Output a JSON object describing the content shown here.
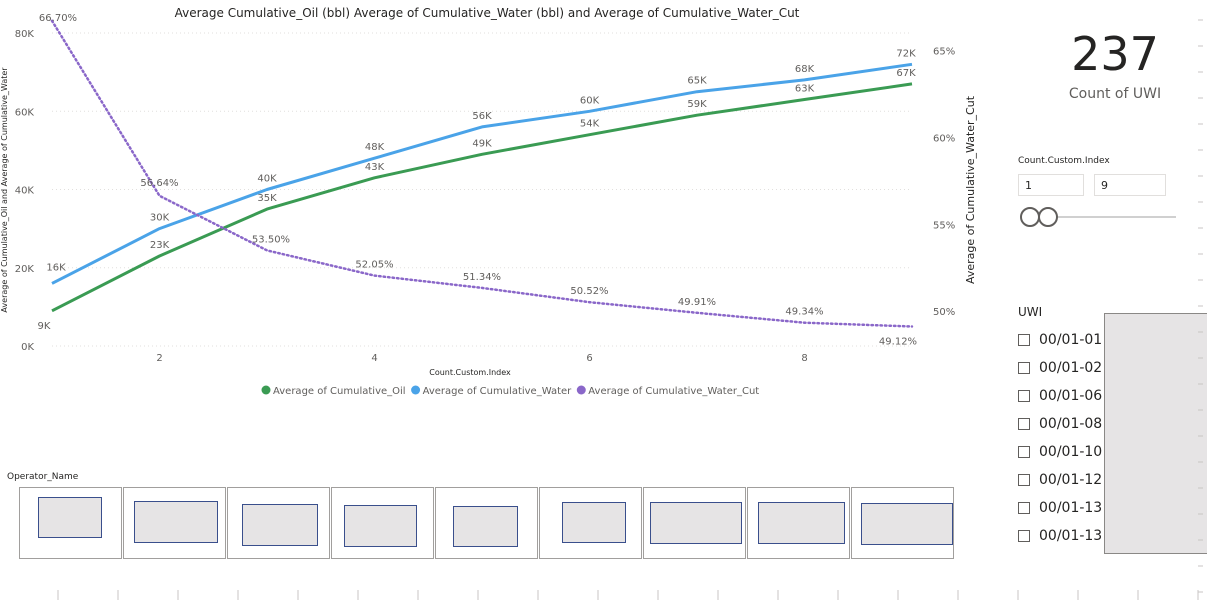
{
  "chart_data": {
    "type": "line",
    "title": "Average Cumulative_Oil (bbl) Average of Cumulative_Water (bbl) and Average of Cumulative_Water_Cut",
    "xlabel": "Count.Custom.Index",
    "ylabel_left": "Average of Cumulative_Oil and Average of Cumulative_Water",
    "ylabel_right": "Average of Cumulative_Water_Cut",
    "x": [
      1,
      2,
      3,
      4,
      5,
      6,
      7,
      8,
      9
    ],
    "x_ticks": [
      "2",
      "4",
      "6",
      "8"
    ],
    "x_tick_values": [
      2,
      4,
      6,
      8
    ],
    "xlim": [
      1,
      9
    ],
    "ylim_left": [
      0,
      80000
    ],
    "y_ticks_left": [
      "0K",
      "20K",
      "40K",
      "60K",
      "80K"
    ],
    "y_tick_values_left": [
      0,
      20000,
      40000,
      60000,
      80000
    ],
    "ylim_right": [
      0.48,
      0.66
    ],
    "y_ticks_right": [
      "50%",
      "55%",
      "60%",
      "65%"
    ],
    "y_tick_values_right": [
      0.5,
      0.55,
      0.6,
      0.65
    ],
    "series": [
      {
        "name": "Average of Cumulative_Oil",
        "color": "#3a9b53",
        "axis": "left",
        "style": "solid",
        "values": [
          9000,
          23000,
          35000,
          43000,
          49000,
          54000,
          59000,
          63000,
          67000
        ],
        "labels": [
          "9K",
          "23K",
          "35K",
          "43K",
          "49K",
          "54K",
          "59K",
          "63K",
          "67K"
        ]
      },
      {
        "name": "Average of Cumulative_Water",
        "color": "#4aa3e8",
        "axis": "left",
        "style": "solid",
        "values": [
          16000,
          30000,
          40000,
          48000,
          56000,
          60000,
          65000,
          68000,
          72000
        ],
        "labels": [
          "16K",
          "30K",
          "40K",
          "48K",
          "56K",
          "60K",
          "65K",
          "68K",
          "72K"
        ]
      },
      {
        "name": "Average of Cumulative_Water_Cut",
        "color": "#8a67c9",
        "axis": "right",
        "style": "dotted",
        "values": [
          0.667,
          0.5664,
          0.535,
          0.5205,
          0.5134,
          0.5052,
          0.4991,
          0.4934,
          0.4912
        ],
        "labels": [
          "66.70%",
          "56.64%",
          "53.50%",
          "52.05%",
          "51.34%",
          "50.52%",
          "49.91%",
          "49.34%",
          "49.12%"
        ]
      }
    ],
    "legend_position": "bottom",
    "grid": true
  },
  "kpi": {
    "value": "237",
    "label": "Count of UWI"
  },
  "range_slicer": {
    "title": "Count.Custom.Index",
    "min": "1",
    "max": "9"
  },
  "uwi_slicer": {
    "title": "UWI",
    "items": [
      "00/01-01",
      "00/01-02",
      "00/01-06",
      "00/01-08",
      "00/01-10",
      "00/01-12",
      "00/01-13",
      "00/01-13"
    ]
  },
  "operator_slicer": {
    "title": "Operator_Name"
  },
  "colors": {
    "oil": "#3a9b53",
    "water": "#4aa3e8",
    "water_cut": "#8a67c9",
    "gridline": "#e1dfdd",
    "tile_fill": "#e6e4e5",
    "tile_border": "#3a4f8c"
  }
}
